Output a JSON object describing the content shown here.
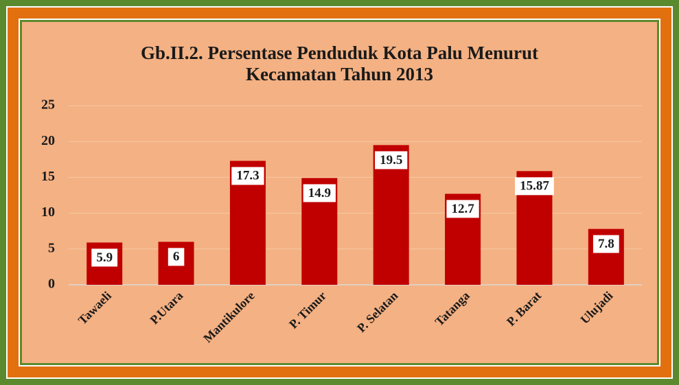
{
  "chart_data": {
    "type": "bar",
    "title": "Gb.II.2. Persentase Penduduk Kota Palu Menurut Kecamatan Tahun 2013",
    "categories": [
      "Tawaeli",
      "P.Utara",
      "Mantikulore",
      "P. Timur",
      "P. Selatan",
      "Tatanga",
      "P. Barat",
      "Ulujadi"
    ],
    "values": [
      5.9,
      6,
      17.3,
      14.9,
      19.5,
      12.7,
      15.87,
      7.8
    ],
    "color": "#c00000",
    "ylim": [
      0,
      25
    ],
    "yticks": [
      0,
      5,
      10,
      15,
      20,
      25
    ],
    "grid": true
  }
}
